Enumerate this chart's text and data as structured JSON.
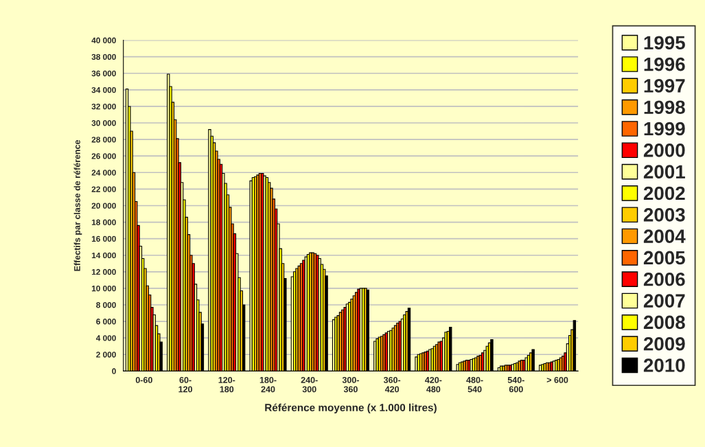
{
  "chart_data": {
    "type": "bar",
    "xlabel": "Référence moyenne (x 1.000 litres)",
    "ylabel": "Effectifs par classe de référence",
    "categories": [
      "0-60",
      "60-\n120",
      "120-\n180",
      "180-\n240",
      "240-\n300",
      "300-\n360",
      "360-\n420",
      "420-\n480",
      "480-\n540",
      "540-\n600",
      "> 600"
    ],
    "ylim": [
      0,
      40000
    ],
    "yticks": [
      {
        "value": 0,
        "label": "0"
      },
      {
        "value": 2000,
        "label": "2 000"
      },
      {
        "value": 4000,
        "label": "4 000"
      },
      {
        "value": 6000,
        "label": "6 000"
      },
      {
        "value": 8000,
        "label": "8 000"
      },
      {
        "value": 10000,
        "label": "10 000"
      },
      {
        "value": 12000,
        "label": "12 000"
      },
      {
        "value": 14000,
        "label": "14 000"
      },
      {
        "value": 16000,
        "label": "16 000"
      },
      {
        "value": 18000,
        "label": "18 000"
      },
      {
        "value": 20000,
        "label": "20 000"
      },
      {
        "value": 22000,
        "label": "22 000"
      },
      {
        "value": 24000,
        "label": "24 000"
      },
      {
        "value": 26000,
        "label": "26 000"
      },
      {
        "value": 28000,
        "label": "28 000"
      },
      {
        "value": 30000,
        "label": "30 000"
      },
      {
        "value": 32000,
        "label": "32 000"
      },
      {
        "value": 34000,
        "label": "34 000"
      },
      {
        "value": 36000,
        "label": "36 000"
      },
      {
        "value": 38000,
        "label": "38 000"
      },
      {
        "value": 40000,
        "label": "40 000"
      }
    ],
    "grid": "y",
    "legend": "right",
    "series": [
      {
        "name": "1995",
        "color": "#ffff99",
        "values": [
          34100,
          35900,
          29200,
          23000,
          11400,
          6200,
          3600,
          1700,
          800,
          400,
          700
        ]
      },
      {
        "name": "1996",
        "color": "#ffff00",
        "values": [
          32000,
          34400,
          28400,
          23400,
          12000,
          6500,
          3900,
          2000,
          1000,
          600,
          800
        ]
      },
      {
        "name": "1997",
        "color": "#ffcc00",
        "values": [
          29000,
          32500,
          27600,
          23500,
          12400,
          6700,
          4100,
          2100,
          1100,
          600,
          900
        ]
      },
      {
        "name": "1998",
        "color": "#ff9900",
        "values": [
          24000,
          30400,
          26600,
          23700,
          12700,
          7100,
          4200,
          2200,
          1200,
          700,
          1000
        ]
      },
      {
        "name": "1999",
        "color": "#ff6600",
        "values": [
          20500,
          28100,
          25600,
          23900,
          13000,
          7400,
          4400,
          2300,
          1300,
          700,
          1000
        ]
      },
      {
        "name": "2000",
        "color": "#ff0000",
        "values": [
          17600,
          25200,
          25000,
          23900,
          13400,
          7700,
          4600,
          2400,
          1300,
          700,
          1100
        ]
      },
      {
        "name": "2001",
        "color": "#ffff99",
        "values": [
          15100,
          22800,
          23900,
          23600,
          13800,
          8100,
          4800,
          2600,
          1400,
          800,
          1200
        ]
      },
      {
        "name": "2002",
        "color": "#ffff00",
        "values": [
          13600,
          20700,
          22700,
          23400,
          14100,
          8300,
          4900,
          2700,
          1500,
          900,
          1300
        ]
      },
      {
        "name": "2003",
        "color": "#ffcc00",
        "values": [
          12400,
          18600,
          21300,
          22800,
          14300,
          8700,
          5200,
          3000,
          1600,
          1000,
          1400
        ]
      },
      {
        "name": "2004",
        "color": "#ff9900",
        "values": [
          10300,
          16500,
          19800,
          22100,
          14300,
          9100,
          5500,
          3200,
          1800,
          1200,
          1600
        ]
      },
      {
        "name": "2005",
        "color": "#ff6600",
        "values": [
          9200,
          14000,
          17800,
          20800,
          14200,
          9500,
          5800,
          3500,
          1900,
          1300,
          1800
        ]
      },
      {
        "name": "2006",
        "color": "#ff0000",
        "values": [
          7700,
          13000,
          16600,
          19600,
          14000,
          9900,
          6000,
          3600,
          2200,
          1300,
          2200
        ]
      },
      {
        "name": "2007",
        "color": "#ffff99",
        "values": [
          6800,
          10500,
          14200,
          17800,
          13600,
          10000,
          6300,
          4000,
          2500,
          1600,
          3300
        ]
      },
      {
        "name": "2008",
        "color": "#ffff00",
        "values": [
          5500,
          8600,
          11300,
          14800,
          12900,
          10000,
          6800,
          4700,
          3000,
          1900,
          4300
        ]
      },
      {
        "name": "2009",
        "color": "#ffcc00",
        "values": [
          4500,
          7100,
          9700,
          13000,
          12300,
          10000,
          7200,
          4800,
          3400,
          2200,
          5000
        ]
      },
      {
        "name": "2010",
        "color": "#000000",
        "values": [
          3500,
          5700,
          8000,
          11200,
          11500,
          9800,
          7600,
          5300,
          3800,
          2600,
          6100
        ]
      }
    ]
  }
}
